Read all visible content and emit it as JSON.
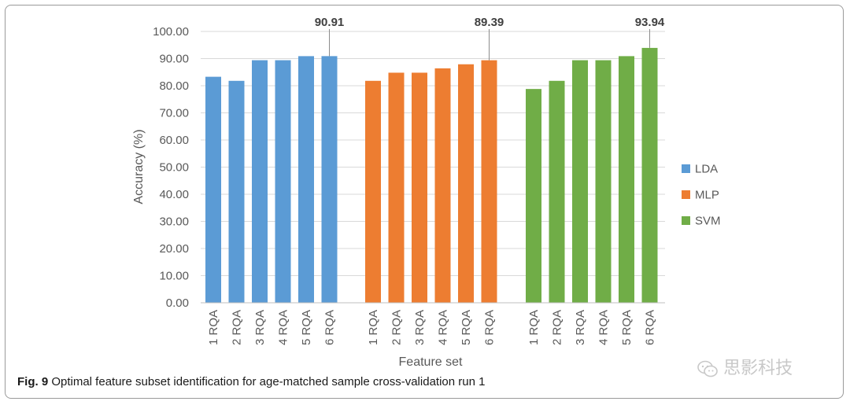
{
  "chart_data": {
    "type": "bar",
    "ylabel": "Accuracy (%)",
    "xlabel": "Feature set",
    "ylim": [
      0,
      100
    ],
    "yticks": [
      "0.00",
      "10.00",
      "20.00",
      "30.00",
      "40.00",
      "50.00",
      "60.00",
      "70.00",
      "80.00",
      "90.00",
      "100.00"
    ],
    "categories": [
      "1 RQA",
      "2 RQA",
      "3 RQA",
      "4 RQA",
      "5 RQA",
      "6 RQA"
    ],
    "grid": true,
    "legend_position": "right",
    "series": [
      {
        "name": "LDA",
        "color": "#5b9bd5",
        "values": [
          83.3,
          81.8,
          89.4,
          89.4,
          90.9,
          90.91
        ],
        "annotation": {
          "index": 5,
          "label": "90.91"
        }
      },
      {
        "name": "MLP",
        "color": "#ed7d31",
        "values": [
          81.8,
          84.8,
          84.8,
          86.4,
          87.9,
          89.39
        ],
        "annotation": {
          "index": 5,
          "label": "89.39"
        }
      },
      {
        "name": "SVM",
        "color": "#70ad47",
        "values": [
          78.8,
          81.8,
          89.4,
          89.4,
          90.9,
          93.94
        ],
        "annotation": {
          "index": 5,
          "label": "93.94"
        }
      }
    ]
  },
  "caption": {
    "label": "Fig. 9",
    "text": " Optimal feature subset identification for age-matched sample cross-validation run 1"
  },
  "watermark": {
    "text": "思影科技",
    "icon": "wechat-icon"
  }
}
